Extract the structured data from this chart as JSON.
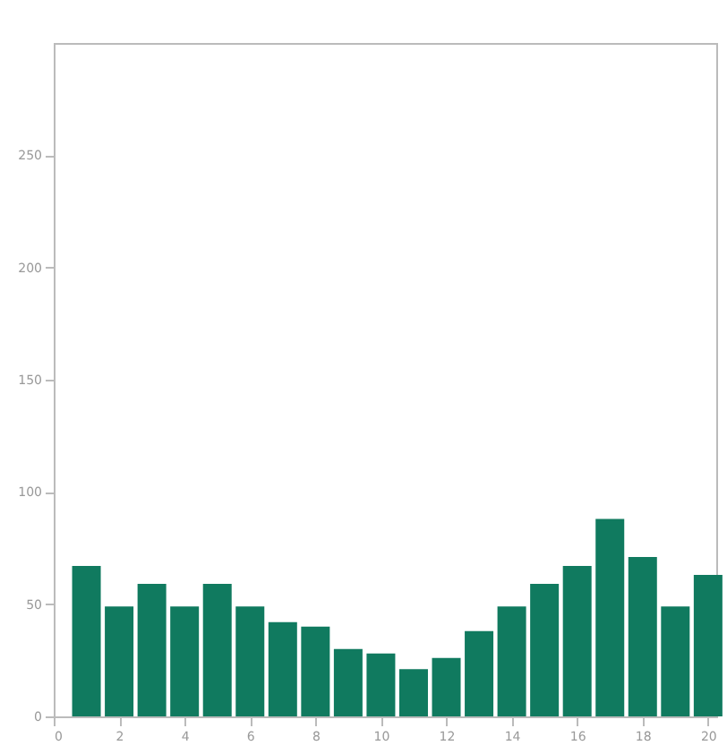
{
  "chart_data": {
    "type": "bar",
    "x": [
      1,
      2,
      3,
      4,
      5,
      6,
      7,
      8,
      9,
      10,
      11,
      12,
      13,
      14,
      15,
      16,
      17,
      18,
      19,
      20
    ],
    "values": [
      67,
      49,
      59,
      49,
      59,
      49,
      42,
      40,
      30,
      28,
      21,
      26,
      38,
      49,
      59,
      67,
      88,
      71,
      49,
      63
    ],
    "color": "#107a5f",
    "xlim": [
      0,
      20.25
    ],
    "xticks": [
      0,
      2,
      4,
      6,
      8,
      10,
      12,
      14,
      16,
      18,
      20
    ],
    "ylim": [
      0,
      300
    ],
    "yticks": [
      0,
      50,
      100,
      150,
      200,
      250
    ],
    "grid": false
  }
}
